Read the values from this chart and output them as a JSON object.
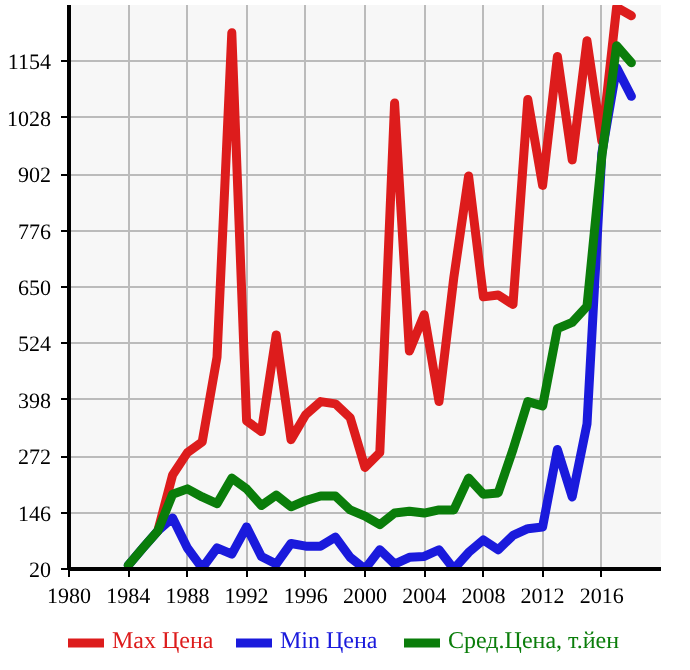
{
  "chart_data": {
    "type": "line",
    "x": [
      1984,
      1985,
      1986,
      1987,
      1988,
      1989,
      1990,
      1991,
      1992,
      1993,
      1994,
      1995,
      1996,
      1997,
      1998,
      1999,
      2000,
      2001,
      2002,
      2003,
      2004,
      2005,
      2006,
      2007,
      2008,
      2009,
      2010,
      2011,
      2012,
      2013,
      2014,
      2015,
      2016,
      2017,
      2018
    ],
    "series": [
      {
        "name": "Max Цена",
        "color": "#dd1c1c",
        "values": [
          null,
          null,
          105,
          230,
          280,
          304,
          493,
          1218,
          351,
          327,
          543,
          309,
          365,
          394,
          389,
          358,
          247,
          280,
          1061,
          507,
          588,
          394,
          671,
          898,
          628,
          632,
          611,
          1069,
          877,
          1165,
          934,
          1200,
          976,
          1275,
          1256
        ]
      },
      {
        "name": "Min Цена",
        "color": "#1a1adc",
        "values": [
          28,
          67,
          105,
          134,
          67,
          22,
          67,
          53,
          114,
          48,
          31,
          77,
          71,
          71,
          91,
          46,
          20,
          63,
          31,
          46,
          48,
          63,
          20,
          57,
          85,
          63,
          95,
          110,
          114,
          287,
          181,
          344,
          948,
          1140,
          1076
        ]
      },
      {
        "name": "Сред.Цена, т.йен",
        "color": "#0a7d0a",
        "values": [
          28,
          67,
          105,
          187,
          199,
          181,
          166,
          223,
          199,
          162,
          185,
          159,
          173,
          183,
          183,
          152,
          138,
          119,
          145,
          149,
          145,
          152,
          152,
          223,
          187,
          190,
          287,
          394,
          384,
          557,
          571,
          607,
          941,
          1189,
          1151
        ]
      }
    ],
    "xlim": [
      1980,
      2020
    ],
    "xticks": [
      1980,
      1984,
      1988,
      1992,
      1996,
      2000,
      2004,
      2008,
      2012,
      2016
    ],
    "ylim": [
      20,
      1280
    ],
    "yticks": [
      20,
      146,
      272,
      398,
      524,
      650,
      776,
      902,
      1028,
      1154
    ],
    "grid": true,
    "legend": "bottom",
    "marker": "none",
    "line_style": "solid"
  }
}
